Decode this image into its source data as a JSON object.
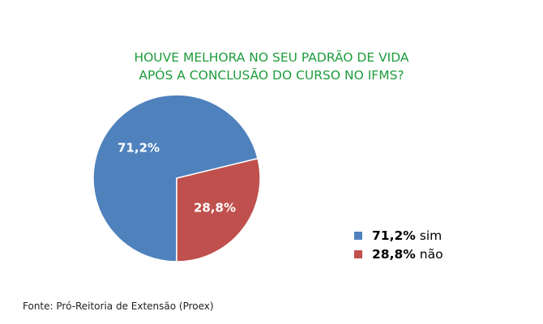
{
  "chart_data": {
    "type": "pie",
    "title_lines": [
      "HOUVE MELHORA NO SEU PADRÃO DE VIDA",
      "APÓS A CONCLUSÃO DO CURSO NO IFMS?"
    ],
    "slices": [
      {
        "label": "sim",
        "value": 71.2,
        "display": "71,2%",
        "color": "#4f81bd"
      },
      {
        "label": "não",
        "value": 28.8,
        "display": "28,8%",
        "color": "#c0504d"
      }
    ],
    "legend_placement": "bottom-right"
  },
  "source": "Fonte: Pró-Reitoria de Extensão (Proex)"
}
